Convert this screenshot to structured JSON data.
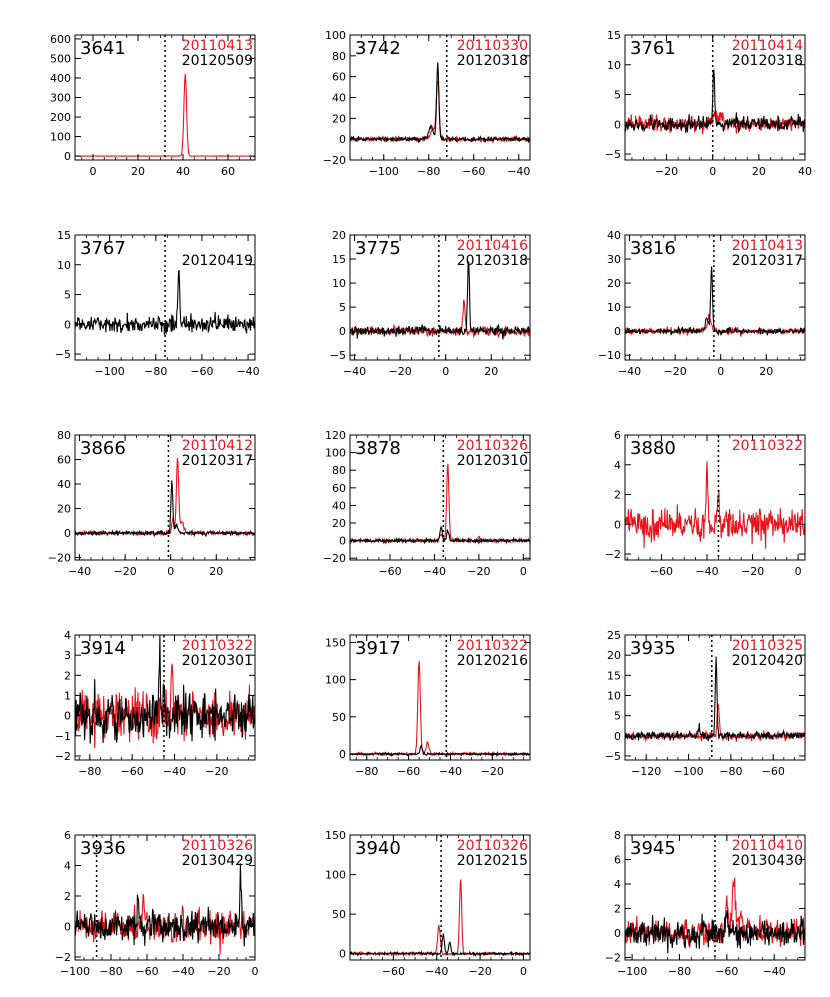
{
  "colors": {
    "first_epoch": "#e8141b",
    "second_epoch": "#000000"
  },
  "chart_data": [
    {
      "type": "line",
      "id": "3641",
      "dates": [
        "20110413",
        "20120509"
      ],
      "xlim": [
        -8,
        72
      ],
      "ylim": [
        -20,
        620
      ],
      "xticks": [
        0,
        20,
        40,
        60
      ],
      "yticks": [
        0,
        100,
        200,
        300,
        400,
        500,
        600
      ],
      "vline": 32,
      "red_peaks": [
        {
          "x": 41,
          "h": 420,
          "w": 0.6
        }
      ],
      "black_peaks": [],
      "red_noise": 0.5,
      "black_noise": 0.0
    },
    {
      "type": "line",
      "id": "3742",
      "dates": [
        "20110330",
        "20120318"
      ],
      "xlim": [
        -115,
        -35
      ],
      "ylim": [
        -20,
        100
      ],
      "xticks": [
        -100,
        -80,
        -60,
        -40
      ],
      "yticks": [
        -20,
        0,
        20,
        40,
        60,
        80,
        100
      ],
      "vline": -72,
      "red_peaks": [
        {
          "x": -76,
          "h": 55,
          "w": 0.6
        },
        {
          "x": -78,
          "h": 9,
          "w": 1.2
        }
      ],
      "black_peaks": [
        {
          "x": -76,
          "h": 73,
          "w": 0.5
        },
        {
          "x": -79,
          "h": 12,
          "w": 1.0
        }
      ],
      "red_noise": 1.0,
      "black_noise": 1.0
    },
    {
      "type": "line",
      "id": "3761",
      "dates": [
        "20110414",
        "20120318"
      ],
      "xlim": [
        -38,
        40
      ],
      "ylim": [
        -6,
        15
      ],
      "xticks": [
        -20,
        0,
        20,
        40
      ],
      "yticks": [
        -5,
        0,
        5,
        10,
        15
      ],
      "vline": 0,
      "red_peaks": [
        {
          "x": 2,
          "h": 1.5,
          "w": 2
        }
      ],
      "black_peaks": [
        {
          "x": 0.5,
          "h": 9.5,
          "w": 0.4
        }
      ],
      "red_noise": 0.6,
      "black_noise": 0.6
    },
    {
      "type": "line",
      "id": "3767",
      "dates": [
        "",
        "20120419"
      ],
      "xlim": [
        -115,
        -37
      ],
      "ylim": [
        -6,
        15
      ],
      "xticks": [
        -100,
        -80,
        -60,
        -40
      ],
      "yticks": [
        -5,
        0,
        5,
        10,
        15
      ],
      "vline": -76,
      "red_peaks": [],
      "black_peaks": [
        {
          "x": -70,
          "h": 9.5,
          "w": 0.4
        }
      ],
      "red_noise": 0.0,
      "black_noise": 0.7
    },
    {
      "type": "line",
      "id": "3775",
      "dates": [
        "20110416",
        "20120318"
      ],
      "xlim": [
        -42,
        37
      ],
      "ylim": [
        -6,
        20
      ],
      "xticks": [
        -40,
        -20,
        0,
        20
      ],
      "yticks": [
        -5,
        0,
        5,
        10,
        15,
        20
      ],
      "vline": -3,
      "red_peaks": [
        {
          "x": 8,
          "h": 6,
          "w": 0.5
        }
      ],
      "black_peaks": [
        {
          "x": 10,
          "h": 15.5,
          "w": 0.4
        }
      ],
      "red_noise": 0.5,
      "black_noise": 0.5
    },
    {
      "type": "line",
      "id": "3816",
      "dates": [
        "20110413",
        "20120317"
      ],
      "xlim": [
        -42,
        37
      ],
      "ylim": [
        -12,
        40
      ],
      "xticks": [
        -40,
        -20,
        0,
        20
      ],
      "yticks": [
        -10,
        0,
        10,
        20,
        30,
        40
      ],
      "vline": -3,
      "red_peaks": [
        {
          "x": -5,
          "h": 6,
          "w": 0.8
        }
      ],
      "black_peaks": [
        {
          "x": -4,
          "h": 27,
          "w": 0.4
        },
        {
          "x": -6,
          "h": 5,
          "w": 0.8
        }
      ],
      "red_noise": 0.6,
      "black_noise": 0.6
    },
    {
      "type": "line",
      "id": "3866",
      "dates": [
        "20110412",
        "20120317"
      ],
      "xlim": [
        -42,
        37
      ],
      "ylim": [
        -22,
        80
      ],
      "xticks": [
        -40,
        -20,
        0,
        20
      ],
      "yticks": [
        -20,
        0,
        20,
        40,
        60,
        80
      ],
      "vline": -1,
      "red_peaks": [
        {
          "x": 3,
          "h": 62,
          "w": 0.5
        },
        {
          "x": 5,
          "h": 10,
          "w": 0.7
        },
        {
          "x": 1,
          "h": 12,
          "w": 0.5
        }
      ],
      "black_peaks": [
        {
          "x": 0.5,
          "h": 43,
          "w": 0.4
        },
        {
          "x": 2.5,
          "h": 6,
          "w": 0.8
        }
      ],
      "red_noise": 0.8,
      "black_noise": 0.8
    },
    {
      "type": "line",
      "id": "3878",
      "dates": [
        "20110326",
        "20120310"
      ],
      "xlim": [
        -78,
        3
      ],
      "ylim": [
        -22,
        120
      ],
      "xticks": [
        -60,
        -40,
        -20,
        0
      ],
      "yticks": [
        -20,
        0,
        20,
        40,
        60,
        80,
        100,
        120
      ],
      "vline": -36,
      "red_peaks": [
        {
          "x": -34,
          "h": 88,
          "w": 0.5
        },
        {
          "x": -37,
          "h": 8,
          "w": 0.6
        },
        {
          "x": -20,
          "h": 5,
          "w": 0.5
        }
      ],
      "black_peaks": [
        {
          "x": -37,
          "h": 16,
          "w": 0.5
        },
        {
          "x": -34,
          "h": 11,
          "w": 0.5
        }
      ],
      "red_noise": 1.0,
      "black_noise": 1.0
    },
    {
      "type": "line",
      "id": "3880",
      "dates": [
        "20110322",
        ""
      ],
      "xlim": [
        -76,
        3
      ],
      "ylim": [
        -2.4,
        6
      ],
      "xticks": [
        -60,
        -40,
        -20,
        0
      ],
      "yticks": [
        -2,
        0,
        2,
        4,
        6
      ],
      "vline": -35,
      "red_peaks": [
        {
          "x": -40,
          "h": 3.9,
          "w": 0.35
        },
        {
          "x": -35,
          "h": 1.8,
          "w": 0.4
        }
      ],
      "black_peaks": [],
      "red_noise": 0.55,
      "black_noise": 0.0
    },
    {
      "type": "line",
      "id": "3914",
      "dates": [
        "20110322",
        "20120301"
      ],
      "xlim": [
        -87,
        -2
      ],
      "ylim": [
        -2.2,
        4
      ],
      "xticks": [
        -80,
        -60,
        -40,
        -20
      ],
      "yticks": [
        -2,
        -1,
        0,
        1,
        2,
        3,
        4
      ],
      "vline": -45,
      "red_peaks": [
        {
          "x": -41,
          "h": 3.2,
          "w": 0.35
        }
      ],
      "black_peaks": [
        {
          "x": -47,
          "h": 2.7,
          "w": 0.3
        },
        {
          "x": -45,
          "h": 1.5,
          "w": 0.3
        }
      ],
      "red_noise": 0.55,
      "black_noise": 0.55
    },
    {
      "type": "line",
      "id": "3917",
      "dates": [
        "20110322",
        "20120216"
      ],
      "xlim": [
        -88,
        -2
      ],
      "ylim": [
        -8,
        160
      ],
      "xticks": [
        -80,
        -60,
        -40,
        -20
      ],
      "yticks": [
        0,
        50,
        100,
        150
      ],
      "vline": -42,
      "red_peaks": [
        {
          "x": -55,
          "h": 125,
          "w": 0.6
        },
        {
          "x": -51,
          "h": 15,
          "w": 0.7
        }
      ],
      "black_peaks": [
        {
          "x": -54,
          "h": 12,
          "w": 0.5
        }
      ],
      "red_noise": 0.8,
      "black_noise": 0.8
    },
    {
      "type": "line",
      "id": "3935",
      "dates": [
        "20110325",
        "20120420"
      ],
      "xlim": [
        -130,
        -45
      ],
      "ylim": [
        -6,
        25
      ],
      "xticks": [
        -120,
        -100,
        -80,
        -60
      ],
      "yticks": [
        -5,
        0,
        5,
        10,
        15,
        20,
        25
      ],
      "vline": -89,
      "red_peaks": [
        {
          "x": -86,
          "h": 7,
          "w": 0.5
        }
      ],
      "black_peaks": [
        {
          "x": -87,
          "h": 19,
          "w": 0.4
        },
        {
          "x": -95,
          "h": 2,
          "w": 0.5
        }
      ],
      "red_noise": 0.5,
      "black_noise": 0.5
    },
    {
      "type": "line",
      "id": "3936",
      "dates": [
        "20110326",
        "20130429"
      ],
      "xlim": [
        -100,
        0
      ],
      "ylim": [
        -2.2,
        6
      ],
      "xticks": [
        -100,
        -80,
        -60,
        -40,
        -20,
        0
      ],
      "yticks": [
        -2,
        0,
        2,
        4,
        6
      ],
      "vline": -88,
      "red_peaks": [
        {
          "x": -62,
          "h": 1.6,
          "w": 0.5
        },
        {
          "x": -40,
          "h": 1.2,
          "w": 0.5
        }
      ],
      "black_peaks": [
        {
          "x": -8,
          "h": 3.1,
          "w": 0.4
        },
        {
          "x": -65,
          "h": 1.5,
          "w": 0.5
        }
      ],
      "red_noise": 0.5,
      "black_noise": 0.5
    },
    {
      "type": "line",
      "id": "3940",
      "dates": [
        "20110326",
        "20120215"
      ],
      "xlim": [
        -80,
        3
      ],
      "ylim": [
        -8,
        150
      ],
      "xticks": [
        -60,
        -40,
        -20,
        0
      ],
      "yticks": [
        0,
        50,
        100,
        150
      ],
      "vline": -38,
      "red_peaks": [
        {
          "x": -29,
          "h": 95,
          "w": 0.5
        },
        {
          "x": -39,
          "h": 35,
          "w": 0.6
        }
      ],
      "black_peaks": [
        {
          "x": -37,
          "h": 25,
          "w": 0.5
        },
        {
          "x": -34,
          "h": 15,
          "w": 0.5
        }
      ],
      "red_noise": 0.8,
      "black_noise": 0.8
    },
    {
      "type": "line",
      "id": "3945",
      "dates": [
        "20110410",
        "20130430"
      ],
      "xlim": [
        -103,
        -27
      ],
      "ylim": [
        -2.2,
        8
      ],
      "xticks": [
        -100,
        -80,
        -60,
        -40
      ],
      "yticks": [
        -2,
        0,
        2,
        4,
        6,
        8
      ],
      "vline": -65,
      "red_peaks": [
        {
          "x": -57,
          "h": 4.3,
          "w": 0.6
        },
        {
          "x": -60,
          "h": 2.6,
          "w": 0.6
        },
        {
          "x": -54,
          "h": 1.7,
          "w": 0.6
        }
      ],
      "black_peaks": [
        {
          "x": -60,
          "h": 1.4,
          "w": 0.6
        }
      ],
      "red_noise": 0.55,
      "black_noise": 0.55
    }
  ]
}
